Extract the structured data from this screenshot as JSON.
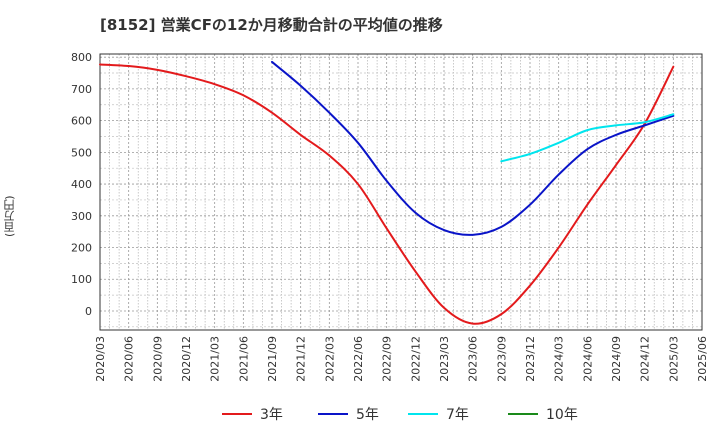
{
  "title": "[8152]  営業CFの12か月移動合計の平均値の推移",
  "y_unit_label": "(百万円)",
  "chart_data": {
    "type": "line",
    "title": "[8152]  営業CFの12か月移動合計の平均値の推移",
    "ylabel": "(百万円)",
    "xlabel": "",
    "ylim": [
      -60,
      810
    ],
    "y_ticks": [
      0,
      100,
      200,
      300,
      400,
      500,
      600,
      700,
      800
    ],
    "x_ticks": [
      "2020/03",
      "2020/06",
      "2020/09",
      "2020/12",
      "2021/03",
      "2021/06",
      "2021/09",
      "2021/12",
      "2022/03",
      "2022/06",
      "2022/09",
      "2022/12",
      "2023/03",
      "2023/06",
      "2023/09",
      "2023/12",
      "2024/03",
      "2024/06",
      "2024/09",
      "2024/12",
      "2025/03",
      "2025/06"
    ],
    "grid": true,
    "legend_position": "bottom",
    "series": [
      {
        "name": "3年",
        "color": "#e31a1c",
        "points": [
          [
            "2020/03",
            777
          ],
          [
            "2020/06",
            772
          ],
          [
            "2020/09",
            760
          ],
          [
            "2020/12",
            740
          ],
          [
            "2021/03",
            715
          ],
          [
            "2021/06",
            680
          ],
          [
            "2021/09",
            625
          ],
          [
            "2021/12",
            555
          ],
          [
            "2022/03",
            490
          ],
          [
            "2022/06",
            400
          ],
          [
            "2022/09",
            260
          ],
          [
            "2022/12",
            125
          ],
          [
            "2023/03",
            10
          ],
          [
            "2023/06",
            -40
          ],
          [
            "2023/09",
            -10
          ],
          [
            "2023/12",
            80
          ],
          [
            "2024/03",
            200
          ],
          [
            "2024/06",
            335
          ],
          [
            "2024/09",
            460
          ],
          [
            "2024/12",
            590
          ],
          [
            "2025/03",
            770
          ]
        ]
      },
      {
        "name": "5年",
        "color": "#0a14c8",
        "points": [
          [
            "2021/09",
            785
          ],
          [
            "2021/12",
            710
          ],
          [
            "2022/03",
            625
          ],
          [
            "2022/06",
            530
          ],
          [
            "2022/09",
            410
          ],
          [
            "2022/12",
            310
          ],
          [
            "2023/03",
            255
          ],
          [
            "2023/06",
            240
          ],
          [
            "2023/09",
            265
          ],
          [
            "2023/12",
            335
          ],
          [
            "2024/03",
            430
          ],
          [
            "2024/06",
            510
          ],
          [
            "2024/09",
            555
          ],
          [
            "2024/12",
            585
          ],
          [
            "2025/03",
            615
          ]
        ]
      },
      {
        "name": "7年",
        "color": "#00e5ee",
        "points": [
          [
            "2023/09",
            472
          ],
          [
            "2023/12",
            495
          ],
          [
            "2024/03",
            530
          ],
          [
            "2024/06",
            570
          ],
          [
            "2024/09",
            585
          ],
          [
            "2024/12",
            595
          ],
          [
            "2025/03",
            620
          ]
        ]
      },
      {
        "name": "10年",
        "color": "#1a8a1a",
        "points": []
      }
    ]
  }
}
